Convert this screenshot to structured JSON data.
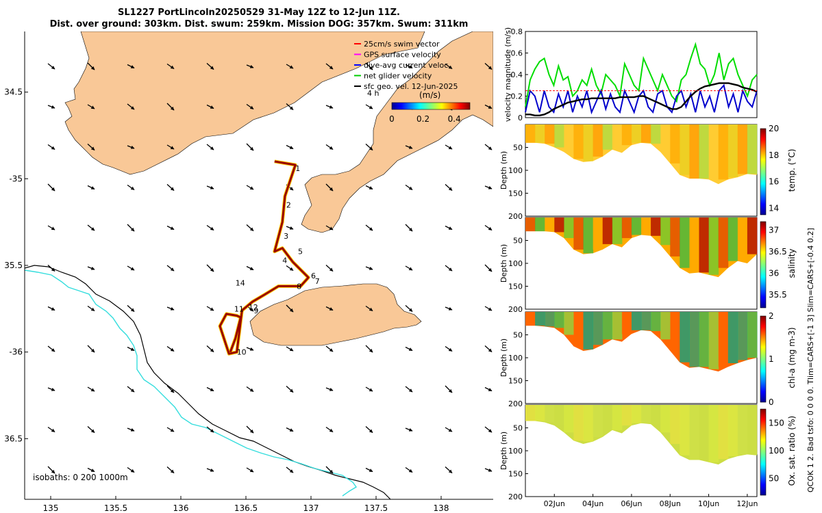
{
  "header": {
    "title_line1": "SL1227 PortLincoln20250529 31-May 12Z to 12-Jun 11Z.",
    "title_line2": "Dist. over ground: 303km. Dist. swum: 259km. Mission DOG: 357km. Swum: 311km"
  },
  "map": {
    "legend": [
      {
        "label": "25cm/s swim vector",
        "color": "#ff0000"
      },
      {
        "label": "GPS surface velocity",
        "color": "#ff00ff"
      },
      {
        "label": "dive-avg current veloc.",
        "color": "#0000ff"
      },
      {
        "label": "net glider velocity",
        "color": "#00cc00"
      },
      {
        "label": "sfc geo. vel. 12-Jun-2025",
        "color": "#000000"
      }
    ],
    "colorbar": {
      "label": "(m/s)",
      "ticks": [
        "0",
        "0.2",
        "0.4"
      ],
      "range": [
        0,
        0.5
      ]
    },
    "isobaths_label": "isobaths: 0 200 1000m",
    "arrow_label": "4 h",
    "land_color": "#f9c897",
    "isobath_200_color": "#000000",
    "isobath_1000_color": "#33dddd",
    "track_color": "#990000",
    "waypoint_labels": [
      "1",
      "2",
      "3",
      "4",
      "5",
      "6",
      "7",
      "8",
      "9",
      "10",
      "11",
      "12",
      "14"
    ]
  },
  "chart_data": [
    {
      "type": "map",
      "xlim": [
        134.8,
        138.4
      ],
      "ylim": [
        -36.85,
        -34.15
      ],
      "x_ticks": [
        135,
        135.5,
        136,
        136.5,
        137,
        137.5,
        138
      ],
      "x_tick_labels": [
        "135",
        "135.5",
        "136",
        "136.5",
        "137",
        "137.5",
        "138"
      ],
      "y_ticks": [
        -34.5,
        -35,
        -35.5,
        -36,
        -36.5
      ],
      "y_tick_labels": [
        "34.5",
        "-35",
        "35.5",
        "-36",
        "36.5"
      ],
      "track_points": [
        [
          136.72,
          -34.9
        ],
        [
          136.88,
          -34.92
        ],
        [
          136.8,
          -35.1
        ],
        [
          136.78,
          -35.25
        ],
        [
          136.72,
          -35.42
        ],
        [
          136.78,
          -35.4
        ],
        [
          136.86,
          -35.48
        ],
        [
          136.98,
          -35.57
        ],
        [
          136.92,
          -35.62
        ],
        [
          136.75,
          -35.62
        ],
        [
          136.64,
          -35.67
        ],
        [
          136.55,
          -35.71
        ],
        [
          136.47,
          -35.76
        ],
        [
          136.43,
          -36.0
        ],
        [
          136.37,
          -36.01
        ],
        [
          136.3,
          -35.85
        ],
        [
          136.35,
          -35.78
        ],
        [
          136.43,
          -35.79
        ],
        [
          136.46,
          -35.8
        ],
        [
          136.42,
          -35.92
        ],
        [
          136.38,
          -36.0
        ]
      ],
      "waypoints": [
        {
          "label": "1",
          "lon": 136.88,
          "lat": -34.94
        },
        {
          "label": "2",
          "lon": 136.81,
          "lat": -35.15
        },
        {
          "label": "3",
          "lon": 136.79,
          "lat": -35.33
        },
        {
          "label": "4",
          "lon": 136.78,
          "lat": -35.47
        },
        {
          "label": "5",
          "lon": 136.9,
          "lat": -35.42
        },
        {
          "label": "6",
          "lon": 137.0,
          "lat": -35.56
        },
        {
          "label": "7",
          "lon": 137.03,
          "lat": -35.59
        },
        {
          "label": "8",
          "lon": 136.89,
          "lat": -35.62
        },
        {
          "label": "9",
          "lon": 136.56,
          "lat": -35.76
        },
        {
          "label": "10",
          "lon": 136.43,
          "lat": -36.0
        },
        {
          "label": "11",
          "lon": 136.41,
          "lat": -35.75
        },
        {
          "label": "12",
          "lon": 136.52,
          "lat": -35.74
        },
        {
          "label": "14",
          "lon": 136.42,
          "lat": -35.6
        }
      ]
    },
    {
      "type": "line",
      "ylabel": "velocity magnitude (m/s)",
      "ylim": [
        0,
        0.8
      ],
      "y_ticks": [
        0,
        0.2,
        0.4,
        0.6,
        0.8
      ],
      "y_tick_labels": [
        "0",
        "0.2",
        "0.4",
        "0.6",
        "0.8"
      ],
      "xlim": [
        0,
        12
      ],
      "series": [
        {
          "name": "net glider velocity",
          "color": "#00dd00",
          "values": [
            0.1,
            0.35,
            0.45,
            0.52,
            0.55,
            0.4,
            0.3,
            0.48,
            0.35,
            0.38,
            0.2,
            0.25,
            0.35,
            0.3,
            0.45,
            0.3,
            0.22,
            0.4,
            0.35,
            0.3,
            0.2,
            0.5,
            0.4,
            0.3,
            0.25,
            0.55,
            0.45,
            0.35,
            0.25,
            0.4,
            0.3,
            0.2,
            0.15,
            0.35,
            0.4,
            0.55,
            0.68,
            0.5,
            0.45,
            0.3,
            0.4,
            0.6,
            0.35,
            0.5,
            0.55,
            0.4,
            0.3,
            0.2,
            0.35,
            0.4
          ]
        },
        {
          "name": "dive-avg current veloc.",
          "color": "#0000cc",
          "values": [
            0.05,
            0.25,
            0.2,
            0.05,
            0.25,
            0.1,
            0.05,
            0.22,
            0.1,
            0.25,
            0.05,
            0.2,
            0.1,
            0.25,
            0.05,
            0.15,
            0.25,
            0.08,
            0.22,
            0.1,
            0.05,
            0.25,
            0.15,
            0.05,
            0.2,
            0.25,
            0.1,
            0.05,
            0.22,
            0.25,
            0.1,
            0.05,
            0.2,
            0.25,
            0.1,
            0.22,
            0.05,
            0.25,
            0.1,
            0.2,
            0.05,
            0.25,
            0.3,
            0.1,
            0.22,
            0.05,
            0.25,
            0.15,
            0.1,
            0.25
          ]
        },
        {
          "name": "sfc geo. vel.",
          "color": "#000000",
          "values": [
            0.03,
            0.03,
            0.02,
            0.02,
            0.03,
            0.05,
            0.08,
            0.1,
            0.12,
            0.14,
            0.15,
            0.16,
            0.17,
            0.17,
            0.18,
            0.18,
            0.18,
            0.18,
            0.18,
            0.18,
            0.19,
            0.19,
            0.19,
            0.19,
            0.2,
            0.2,
            0.18,
            0.16,
            0.14,
            0.12,
            0.1,
            0.08,
            0.08,
            0.1,
            0.15,
            0.2,
            0.24,
            0.27,
            0.29,
            0.3,
            0.31,
            0.32,
            0.32,
            0.32,
            0.31,
            0.3,
            0.28,
            0.27,
            0.26,
            0.24
          ]
        },
        {
          "name": "swim vector",
          "color": "#ff0000",
          "values": [
            0.25,
            0.25,
            0.25,
            0.25,
            0.25,
            0.25,
            0.25,
            0.25,
            0.25,
            0.25,
            0.25,
            0.25,
            0.25,
            0.25,
            0.25,
            0.25,
            0.25,
            0.25,
            0.25,
            0.25,
            0.25,
            0.25,
            0.25,
            0.25,
            0.25,
            0.25,
            0.25,
            0.25,
            0.25,
            0.25,
            0.25,
            0.25,
            0.25,
            0.25,
            0.25,
            0.25,
            0.25,
            0.25,
            0.25,
            0.25,
            0.25,
            0.25,
            0.25,
            0.25,
            0.25,
            0.25,
            0.25,
            0.25,
            0.25,
            0.25
          ]
        }
      ]
    },
    {
      "type": "heatmap",
      "ylabel": "Depth (m)",
      "cbar_label": "temp. (°C)",
      "ylim": [
        0,
        200
      ],
      "y_ticks": [
        50,
        100,
        150,
        200
      ],
      "y_tick_labels": [
        "50",
        "100",
        "150",
        "200"
      ],
      "clim": [
        13.5,
        20
      ],
      "cbar_ticks": [
        "14",
        "16",
        "18",
        "20"
      ],
      "cbar_tick_values": [
        14,
        16,
        18,
        20
      ],
      "bottom_depth": [
        40,
        40,
        42,
        50,
        60,
        75,
        82,
        80,
        70,
        55,
        62,
        45,
        40,
        42,
        60,
        85,
        110,
        118,
        118,
        120,
        130,
        120,
        115,
        108,
        110
      ]
    },
    {
      "type": "heatmap",
      "ylabel": "Depth (m)",
      "cbar_label": "salinity",
      "ylim": [
        0,
        200
      ],
      "y_ticks": [
        50,
        100,
        150,
        200
      ],
      "y_tick_labels": [
        "50",
        "100",
        "150",
        "200"
      ],
      "clim": [
        35.2,
        37.2
      ],
      "cbar_ticks": [
        "35.5",
        "36",
        "36.5",
        "37"
      ],
      "cbar_tick_values": [
        35.5,
        36,
        36.5,
        37
      ],
      "bottom_depth": [
        30,
        30,
        30,
        32,
        45,
        70,
        80,
        78,
        70,
        58,
        65,
        45,
        38,
        40,
        60,
        85,
        110,
        122,
        120,
        125,
        130,
        110,
        95,
        100,
        80
      ]
    },
    {
      "type": "heatmap",
      "ylabel": "Depth (m)",
      "cbar_label": "chl-a (mg m-3)",
      "ylim": [
        0,
        200
      ],
      "y_ticks": [
        50,
        100,
        150,
        200
      ],
      "y_tick_labels": [
        "50",
        "100",
        "150",
        "200"
      ],
      "clim": [
        0,
        2
      ],
      "cbar_ticks": [
        "0",
        "1",
        "2"
      ],
      "cbar_tick_values": [
        0,
        1,
        2
      ],
      "bottom_depth": [
        30,
        30,
        32,
        35,
        50,
        75,
        85,
        82,
        72,
        60,
        65,
        48,
        40,
        42,
        60,
        85,
        110,
        122,
        120,
        125,
        130,
        120,
        112,
        105,
        100
      ]
    },
    {
      "type": "heatmap",
      "ylabel": "Depth (m)",
      "cbar_label": "Ox. sat. ratio (%)",
      "ylim": [
        0,
        200
      ],
      "y_ticks": [
        50,
        100,
        150,
        200
      ],
      "y_tick_labels": [
        "50",
        "100",
        "150",
        "200"
      ],
      "clim": [
        20,
        175
      ],
      "cbar_ticks": [
        "50",
        "100",
        "150"
      ],
      "cbar_tick_values": [
        50,
        100,
        150
      ],
      "bottom_depth": [
        35,
        35,
        38,
        45,
        60,
        78,
        85,
        80,
        70,
        55,
        62,
        45,
        40,
        42,
        60,
        85,
        110,
        120,
        120,
        125,
        130,
        118,
        112,
        108,
        110
      ],
      "x_tick_labels": [
        "02Jun",
        "04Jun",
        "06Jun",
        "08Jun",
        "10Jun",
        "12Jun"
      ],
      "x_tick_values": [
        1.5,
        3.5,
        5.5,
        7.5,
        9.5,
        11.5
      ]
    }
  ],
  "side_note": "QCOK 1  2. Bad tsfo: 0  0  0  0. Tlim=CARS+[-1 3] Slim=CARS+[-0.4 0.2]"
}
